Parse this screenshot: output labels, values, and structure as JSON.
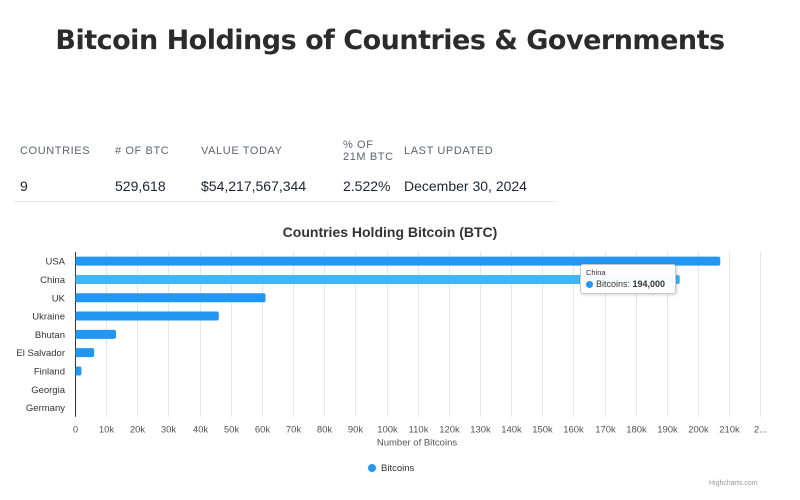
{
  "title": "Bitcoin Holdings of Countries & Governments",
  "stats": [
    {
      "header": "COUNTRIES",
      "value": "9"
    },
    {
      "header": "# OF BTC",
      "value": "529,618"
    },
    {
      "header": "VALUE TODAY",
      "value": "$54,217,567,344"
    },
    {
      "header": "% OF 21M BTC",
      "value": "2.522%"
    },
    {
      "header": "LAST UPDATED",
      "value": "December 30, 2024"
    }
  ],
  "colors": {
    "bar": "#2196f3",
    "bar_hover": "#3fb6f7"
  },
  "chart_data": {
    "type": "bar",
    "orientation": "horizontal",
    "title": "Countries Holding Bitcoin (BTC)",
    "categories": [
      "USA",
      "China",
      "UK",
      "Ukraine",
      "Bhutan",
      "El Salvador",
      "Finland",
      "Georgia",
      "Germany"
    ],
    "series": [
      {
        "name": "Bitcoins",
        "values": [
          207000,
          194000,
          61000,
          46000,
          13000,
          6000,
          1900,
          66,
          0
        ]
      }
    ],
    "xlabel": "Number of Bitcoins",
    "ylabel": "",
    "xlim": [
      0,
      220000
    ],
    "x_ticks": [
      "0",
      "10k",
      "20k",
      "30k",
      "40k",
      "50k",
      "60k",
      "70k",
      "80k",
      "90k",
      "100k",
      "110k",
      "120k",
      "130k",
      "140k",
      "150k",
      "160k",
      "170k",
      "180k",
      "190k",
      "200k",
      "210k",
      "2..."
    ],
    "grid": true,
    "legend": "bottom-center",
    "highlighted": "China",
    "tooltip": {
      "category": "China",
      "label": "Bitcoins:",
      "value": "194,000"
    },
    "credits": "Highcharts.com"
  }
}
